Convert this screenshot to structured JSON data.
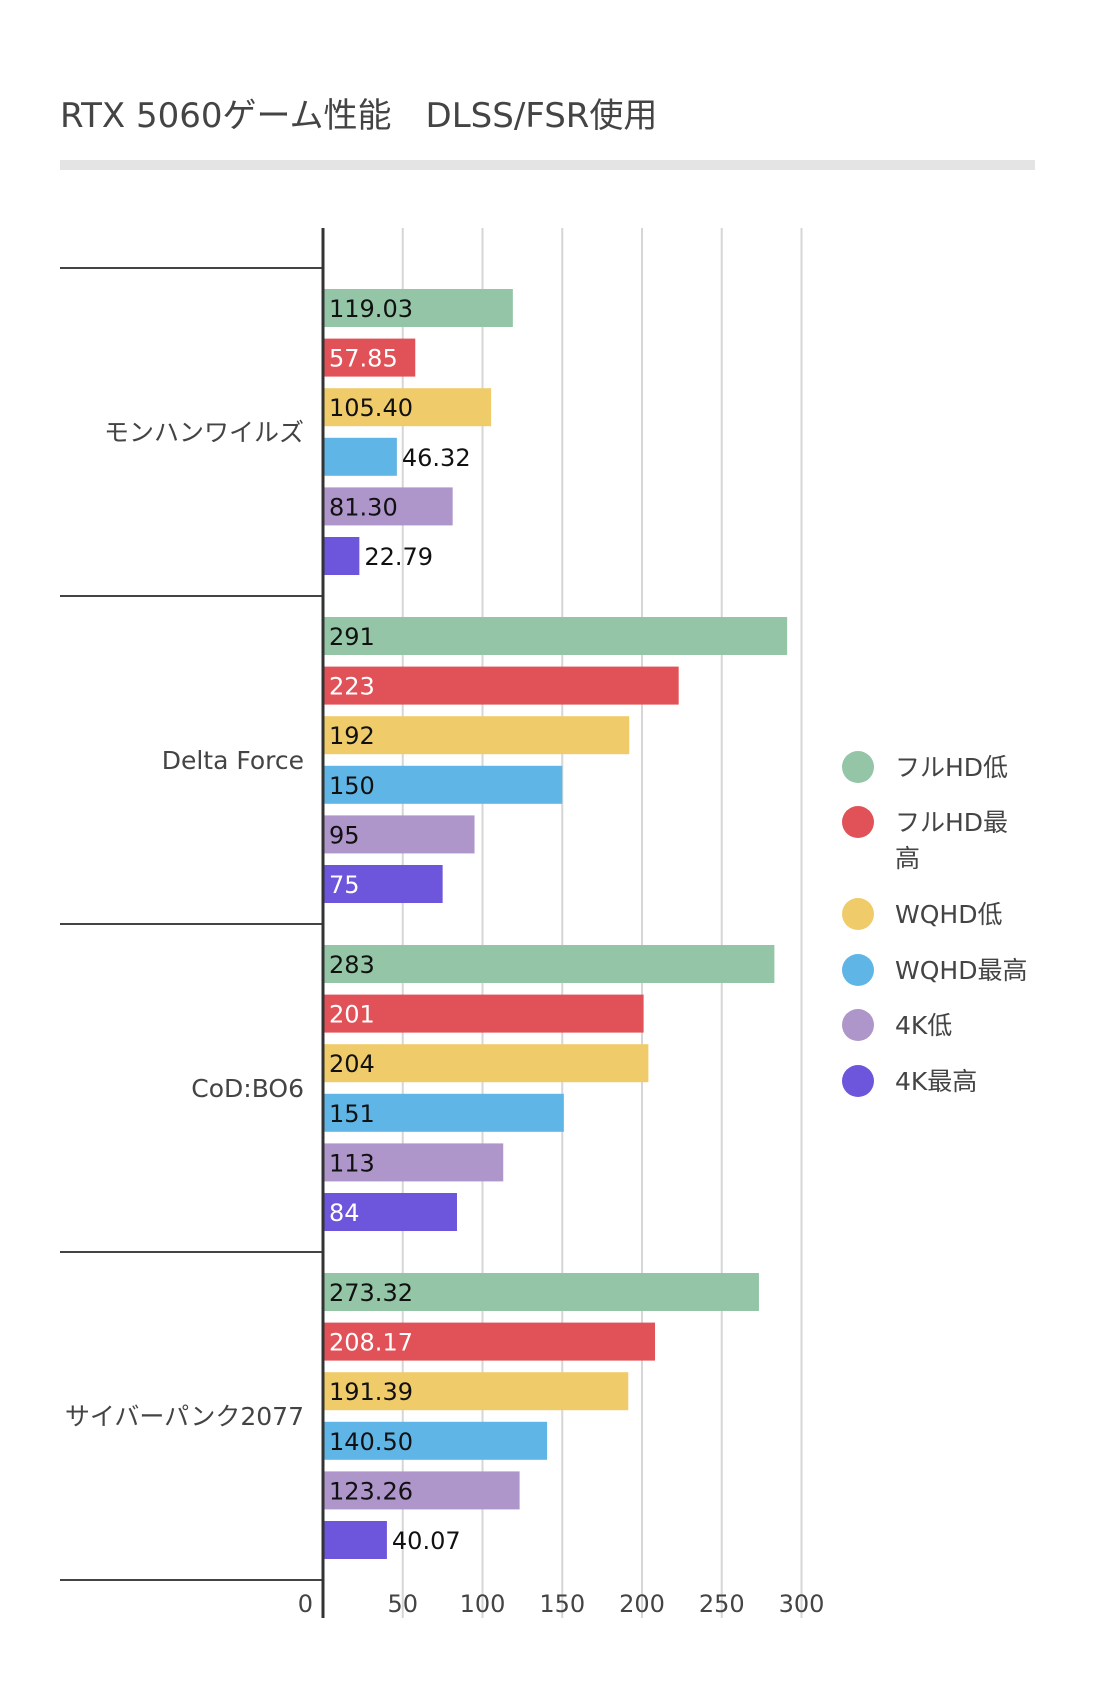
{
  "chart_data": {
    "type": "bar",
    "orientation": "horizontal",
    "title": "RTX 5060ゲーム性能　DLSS/FSR使用",
    "categories": [
      "モンハンワイルズ",
      "Delta Force",
      "CoD:BO6",
      "サイバーパンク2077"
    ],
    "series": [
      {
        "name": "フルHD低",
        "color": "#93c5a6",
        "values": [
          119.03,
          291,
          283,
          273.32
        ],
        "labels": [
          "119.03",
          "291",
          "283",
          "273.32"
        ]
      },
      {
        "name": "フルHD最高",
        "color": "#e05257",
        "values": [
          57.85,
          223,
          201,
          208.17
        ],
        "labels": [
          "57.85",
          "223",
          "201",
          "208.17"
        ]
      },
      {
        "name": "WQHD低",
        "color": "#f0cb6a",
        "values": [
          105.4,
          192,
          204,
          191.39
        ],
        "labels": [
          "105.40",
          "192",
          "204",
          "191.39"
        ]
      },
      {
        "name": "WQHD最高",
        "color": "#5fb6e6",
        "values": [
          46.32,
          150,
          151,
          140.5
        ],
        "labels": [
          "46.32",
          "150",
          "151",
          "140.50"
        ]
      },
      {
        "name": "4K低",
        "color": "#ae95ca",
        "values": [
          81.3,
          95,
          113,
          123.26
        ],
        "labels": [
          "81.30",
          "95",
          "113",
          "123.26"
        ]
      },
      {
        "name": "4K最高",
        "color": "#6d55dc",
        "values": [
          22.79,
          75,
          84,
          40.07
        ],
        "labels": [
          "22.79",
          "75",
          "84",
          "40.07"
        ]
      }
    ],
    "xticks": [
      "0",
      "50",
      "100",
      "150",
      "200",
      "250",
      "300"
    ],
    "xlim": [
      0,
      300
    ],
    "grid": true,
    "legend": "right"
  }
}
